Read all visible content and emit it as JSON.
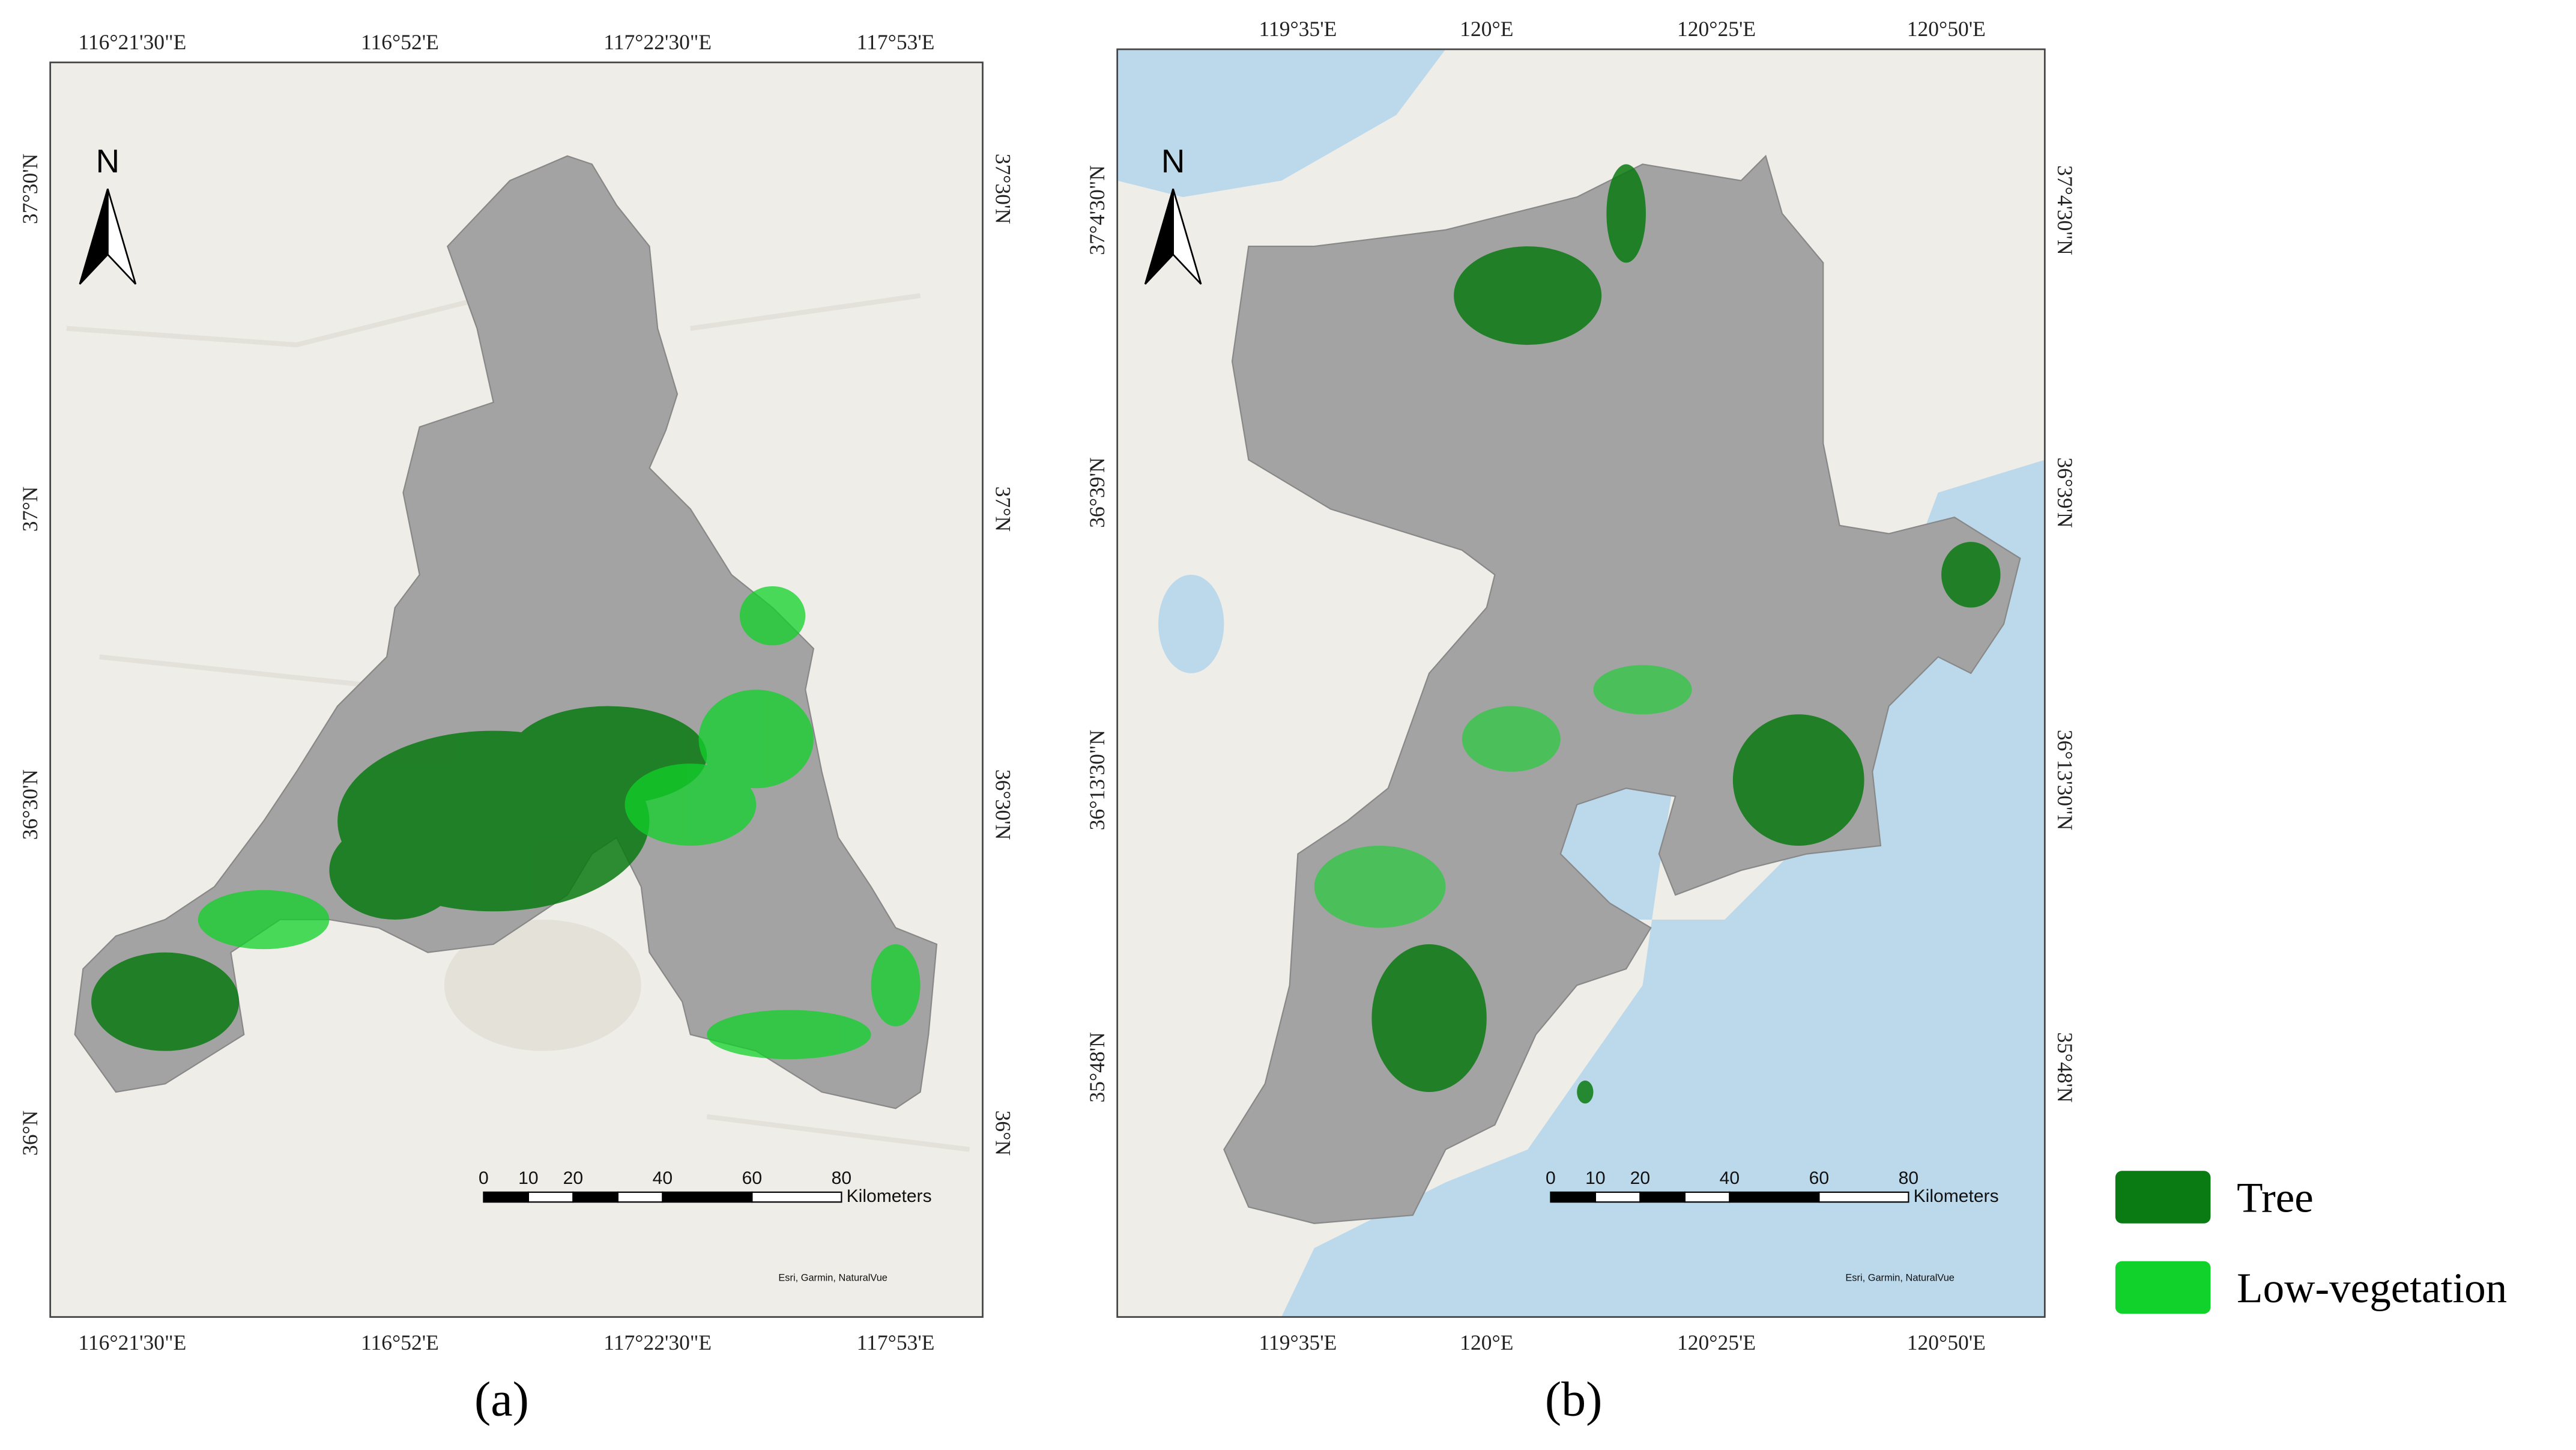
{
  "panels": [
    {
      "caption": "(a)",
      "lon_labels": [
        "116°21'30\"E",
        "116°52'E",
        "117°22'30\"E",
        "117°53'E"
      ],
      "lat_labels": [
        "37°30'N",
        "37°N",
        "36°30'N",
        "36°N"
      ],
      "north": "N",
      "scale_labels": [
        "0",
        "10",
        "20",
        "40",
        "60",
        "80"
      ],
      "scale_unit": "Kilometers",
      "attribution": "Esri, Garmin, NaturalVue"
    },
    {
      "caption": "(b)",
      "lon_labels": [
        "119°35'E",
        "120°E",
        "120°25'E",
        "120°50'E"
      ],
      "lat_labels": [
        "37°4'30\"N",
        "36°39'N",
        "36°13'30\"N",
        "35°48'N"
      ],
      "north": "N",
      "scale_labels": [
        "0",
        "10",
        "20",
        "40",
        "60",
        "80"
      ],
      "scale_unit": "Kilometers",
      "attribution": "Esri, Garmin, NaturalVue"
    }
  ],
  "legend": [
    {
      "label": "Tree",
      "color": "#0a7a12"
    },
    {
      "label": "Low-vegetation",
      "color": "#10d22a"
    }
  ]
}
